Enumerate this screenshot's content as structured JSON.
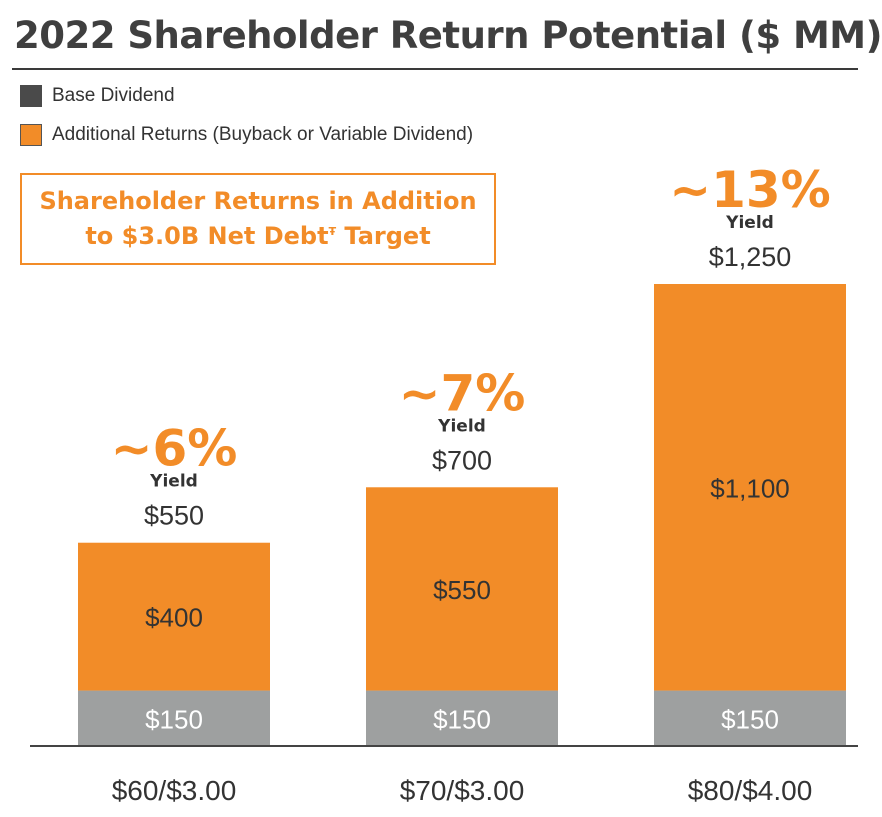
{
  "title": "2022 Shareholder Return Potential ($ MM)",
  "legend": [
    {
      "label": "Base Dividend",
      "color": "#4a4a4a"
    },
    {
      "label": "Additional Returns (Buyback or Variable Dividend)",
      "color": "#f28c28"
    }
  ],
  "callout": {
    "line1": "Shareholder Returns in Addition",
    "line2_prefix": "to $3.0B Net Debt",
    "line2_sup": "Ŧ",
    "line2_suffix": " Target"
  },
  "colors": {
    "orange": "#f28c28",
    "gray": "#9ea0a0",
    "dark": "#333333"
  },
  "chart_data": {
    "type": "bar",
    "stacked": true,
    "categories": [
      "$60/$3.00",
      "$70/$3.00",
      "$80/$4.00"
    ],
    "series": [
      {
        "name": "Base Dividend",
        "values": [
          150,
          150,
          150
        ],
        "labels": [
          "$150",
          "$150",
          "$150"
        ]
      },
      {
        "name": "Additional Returns (Buyback or Variable Dividend)",
        "values": [
          400,
          550,
          1100
        ],
        "labels": [
          "$400",
          "$550",
          "$1,100"
        ]
      }
    ],
    "totals": [
      550,
      700,
      1250
    ],
    "total_labels": [
      "$550",
      "$700",
      "$1,250"
    ],
    "yields": [
      "~6%",
      "~7%",
      "~13%"
    ],
    "yield_caption": "Yield"
  }
}
